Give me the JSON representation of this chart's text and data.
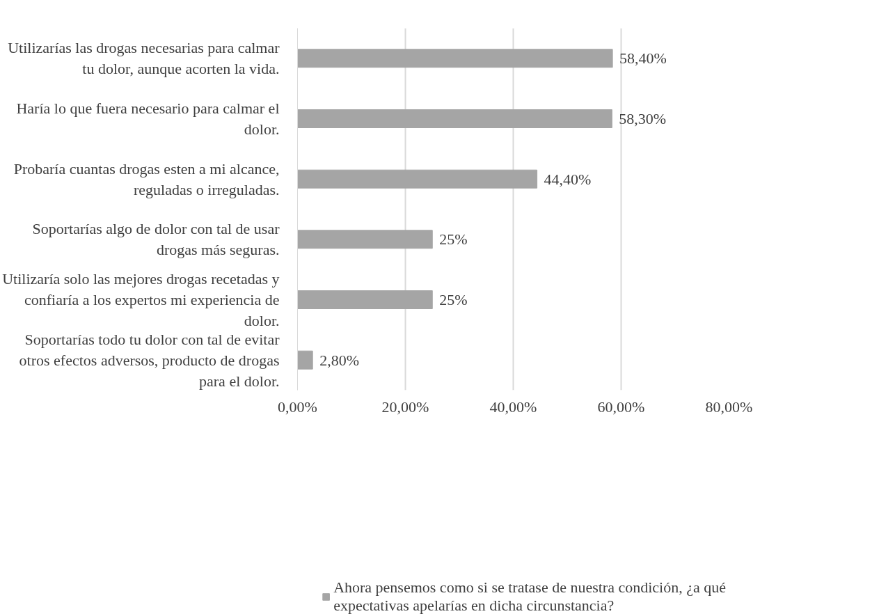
{
  "chart_data": {
    "type": "bar",
    "orientation": "horizontal",
    "categories": [
      "Utilizarías las drogas necesarias para calmar tu dolor, aunque acorten la vida.",
      "Haría lo que fuera necesario para calmar el dolor.",
      "Probaría cuantas drogas esten a mi alcance, reguladas o irreguladas.",
      "Soportarías algo de dolor con tal de usar drogas más seguras.",
      "Utilizaría solo las mejores drogas recetadas y confiaría a los expertos mi experiencia de dolor.",
      "Soportarías todo tu dolor con tal de evitar otros efectos adversos, producto de drogas para el dolor."
    ],
    "series": [
      {
        "name": "Ahora pensemos como si se tratase de nuestra condición, ¿a qué expectativas apelarías en dicha circunstancia?",
        "color": "#a5a5a5",
        "values": [
          58.4,
          58.3,
          44.4,
          25,
          25,
          2.8
        ],
        "value_labels": [
          "58,40%",
          "58,30%",
          "44,40%",
          "25%",
          "25%",
          "2,80%"
        ]
      }
    ],
    "xlim": [
      0,
      80
    ],
    "xticks": [
      {
        "value": 0,
        "label": "0,00%"
      },
      {
        "value": 20,
        "label": "20,00%"
      },
      {
        "value": 40,
        "label": "40,00%"
      },
      {
        "value": 60,
        "label": "60,00%"
      },
      {
        "value": 80,
        "label": "80,00%"
      }
    ],
    "grid": "x",
    "legend": "bottom"
  }
}
